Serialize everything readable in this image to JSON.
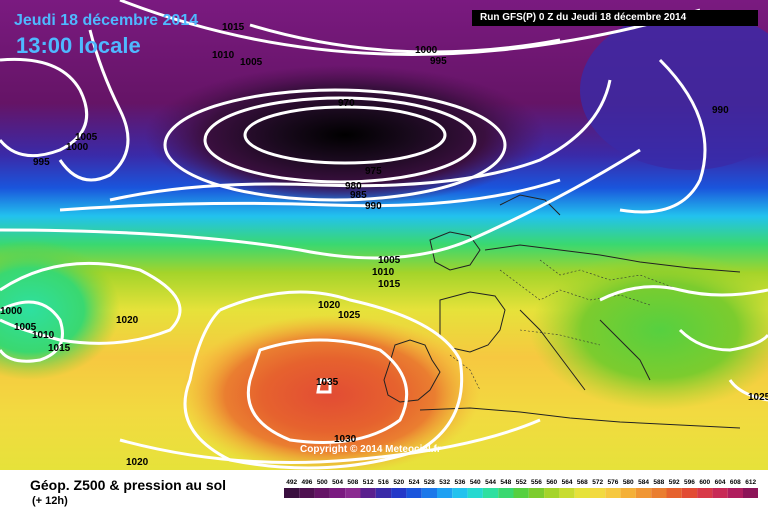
{
  "header": {
    "date": "Jeudi 18 décembre 2014",
    "time": "13:00 locale",
    "run": "Run GFS(P) 0 Z du Jeudi 18 décembre 2014"
  },
  "copyright": "Copyright © 2014 Meteociel.fr",
  "footer": {
    "title": "Géop. Z500 & pression au sol",
    "subtitle": "(+ 12h)"
  },
  "legend": {
    "values": [
      "492",
      "496",
      "500",
      "504",
      "508",
      "512",
      "516",
      "520",
      "524",
      "528",
      "532",
      "536",
      "540",
      "544",
      "548",
      "552",
      "556",
      "560",
      "564",
      "568",
      "572",
      "576",
      "580",
      "584",
      "588",
      "592",
      "596",
      "600",
      "604",
      "608",
      "612"
    ],
    "colors": [
      "#3a0f3f",
      "#4e1050",
      "#651466",
      "#7a1a80",
      "#8a2a90",
      "#5a1f8e",
      "#3a2aa8",
      "#2438c8",
      "#1a55dc",
      "#1c78ea",
      "#1fa0f2",
      "#22c2ee",
      "#26d9d0",
      "#2ee0a0",
      "#3ad870",
      "#56d040",
      "#7ccc2e",
      "#a4d42a",
      "#c8dc30",
      "#e6e23a",
      "#f2da40",
      "#f6c840",
      "#f4b038",
      "#f09634",
      "#ea7e30",
      "#e6622e",
      "#e24c34",
      "#d83a48",
      "#c82a56",
      "#b01e5e",
      "#8c1458"
    ]
  },
  "isobars": [
    {
      "id": "isobar-label-1015-top",
      "text": "1015"
    },
    {
      "id": "isobar-label-1010-top",
      "text": "1010"
    },
    {
      "id": "isobar-label-1005-top",
      "text": "1005"
    },
    {
      "id": "isobar-label-1000-top",
      "text": "1000"
    },
    {
      "id": "isobar-label-995-top",
      "text": "995"
    },
    {
      "id": "isobar-label-970",
      "text": "970"
    },
    {
      "id": "isobar-label-990-right",
      "text": "990"
    },
    {
      "id": "isobar-label-1005-left",
      "text": "1005"
    },
    {
      "id": "isobar-label-1000-left",
      "text": "1000"
    },
    {
      "id": "isobar-label-995-left",
      "text": "995"
    },
    {
      "id": "isobar-label-975",
      "text": "975"
    },
    {
      "id": "isobar-label-980",
      "text": "980"
    },
    {
      "id": "isobar-label-985",
      "text": "985"
    },
    {
      "id": "isobar-label-990",
      "text": "990"
    },
    {
      "id": "isobar-label-1005-mid",
      "text": "1005"
    },
    {
      "id": "isobar-label-1010-mid",
      "text": "1010"
    },
    {
      "id": "isobar-label-1015-mid",
      "text": "1015"
    },
    {
      "id": "isobar-label-1020-mid",
      "text": "1020"
    },
    {
      "id": "isobar-label-1025-mid",
      "text": "1025"
    },
    {
      "id": "isobar-label-1020-west",
      "text": "1020"
    },
    {
      "id": "isobar-label-1000-west",
      "text": "1000"
    },
    {
      "id": "isobar-label-1005-west",
      "text": "1005"
    },
    {
      "id": "isobar-label-1010-west",
      "text": "1010"
    },
    {
      "id": "isobar-label-1015-west",
      "text": "1015"
    },
    {
      "id": "isobar-label-1035",
      "text": "1035"
    },
    {
      "id": "isobar-label-1030",
      "text": "1030"
    },
    {
      "id": "isobar-label-1020-bottom",
      "text": "1020"
    },
    {
      "id": "isobar-label-1025-east",
      "text": "1025"
    }
  ]
}
